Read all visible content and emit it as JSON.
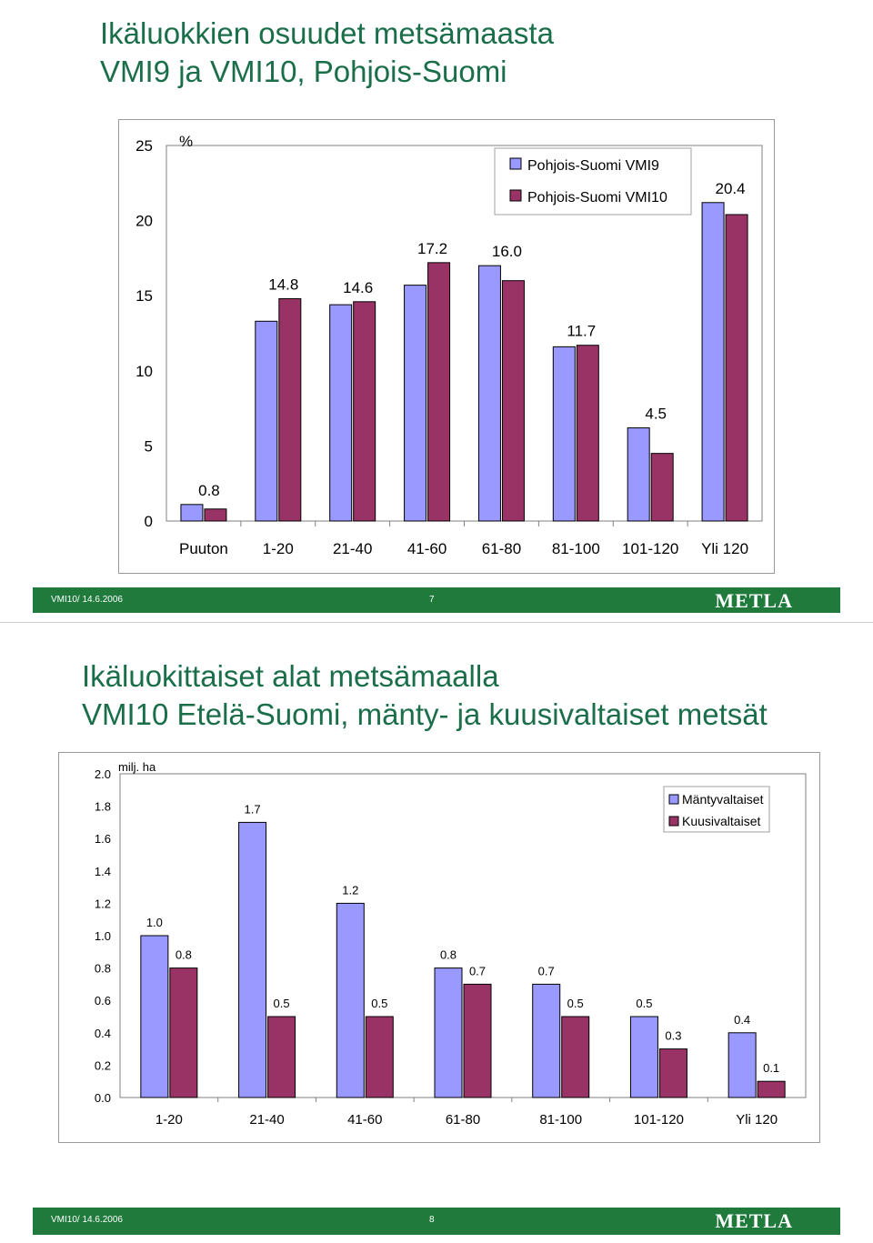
{
  "slide1": {
    "title_line1": "Ikäluokkien osuudet metsämaasta",
    "title_line2": "VMI9 ja VMI10, Pohjois-Suomi",
    "footer": {
      "date": "VMI10/  14.6.2006",
      "page": "7",
      "logo": "METLA"
    }
  },
  "slide2": {
    "title_line1": "Ikäluokittaiset alat metsämaalla",
    "title_line2": "VMI10 Etelä-Suomi, mänty- ja kuusivaltaiset metsät",
    "footer": {
      "date": "VMI10/  14.6.2006",
      "page": "8",
      "logo": "METLA"
    }
  },
  "colors": {
    "series1": "#9999ff",
    "series2": "#993366",
    "title": "#1a6e4a",
    "footer": "#1f7a3c"
  },
  "chart_data": [
    {
      "type": "bar",
      "title": "Ikäluokkien osuudet metsämaasta VMI9 ja VMI10, Pohjois-Suomi",
      "ylabel": "%",
      "xlabel": "",
      "ylim": [
        0,
        25
      ],
      "yticks": [
        0,
        5,
        10,
        15,
        20,
        25
      ],
      "categories": [
        "Puuton",
        "1-20",
        "21-40",
        "41-60",
        "61-80",
        "81-100",
        "101-120",
        "Yli 120"
      ],
      "series": [
        {
          "name": "Pohjois-Suomi VMI9",
          "values": [
            1.1,
            13.3,
            14.4,
            15.7,
            17.0,
            11.6,
            6.2,
            21.2
          ]
        },
        {
          "name": "Pohjois-Suomi VMI10",
          "values": [
            0.8,
            14.8,
            14.6,
            17.2,
            16.0,
            11.7,
            4.5,
            20.4
          ]
        }
      ],
      "data_labels": [
        "0.8",
        "14.8",
        "14.6",
        "17.2",
        "16.0",
        "11.7",
        "4.5",
        "20.4"
      ],
      "legend": "top-right"
    },
    {
      "type": "bar",
      "title": "Ikäluokittaiset alat metsämaalla VMI10 Etelä-Suomi, mänty- ja kuusivaltaiset metsät",
      "ylabel": "milj. ha",
      "xlabel": "",
      "ylim": [
        0,
        2.0
      ],
      "yticks": [
        "0.0",
        "0.2",
        "0.4",
        "0.6",
        "0.8",
        "1.0",
        "1.2",
        "1.4",
        "1.6",
        "1.8",
        "2.0"
      ],
      "categories": [
        "1-20",
        "21-40",
        "41-60",
        "61-80",
        "81-100",
        "101-120",
        "Yli 120"
      ],
      "series": [
        {
          "name": "Mäntyvaltaiset",
          "values": [
            1.0,
            1.7,
            1.2,
            0.8,
            0.7,
            0.5,
            0.4
          ],
          "labels": [
            "1.0",
            "1.7",
            "1.2",
            "0.8",
            "0.7",
            "0.5",
            "0.4"
          ]
        },
        {
          "name": "Kuusivaltaiset",
          "values": [
            0.8,
            0.5,
            0.5,
            0.7,
            0.5,
            0.3,
            0.1
          ],
          "labels": [
            "0.8",
            "0.5",
            "0.5",
            "0.7",
            "0.5",
            "0.3",
            "0.1"
          ]
        }
      ],
      "legend": "top-right"
    }
  ]
}
